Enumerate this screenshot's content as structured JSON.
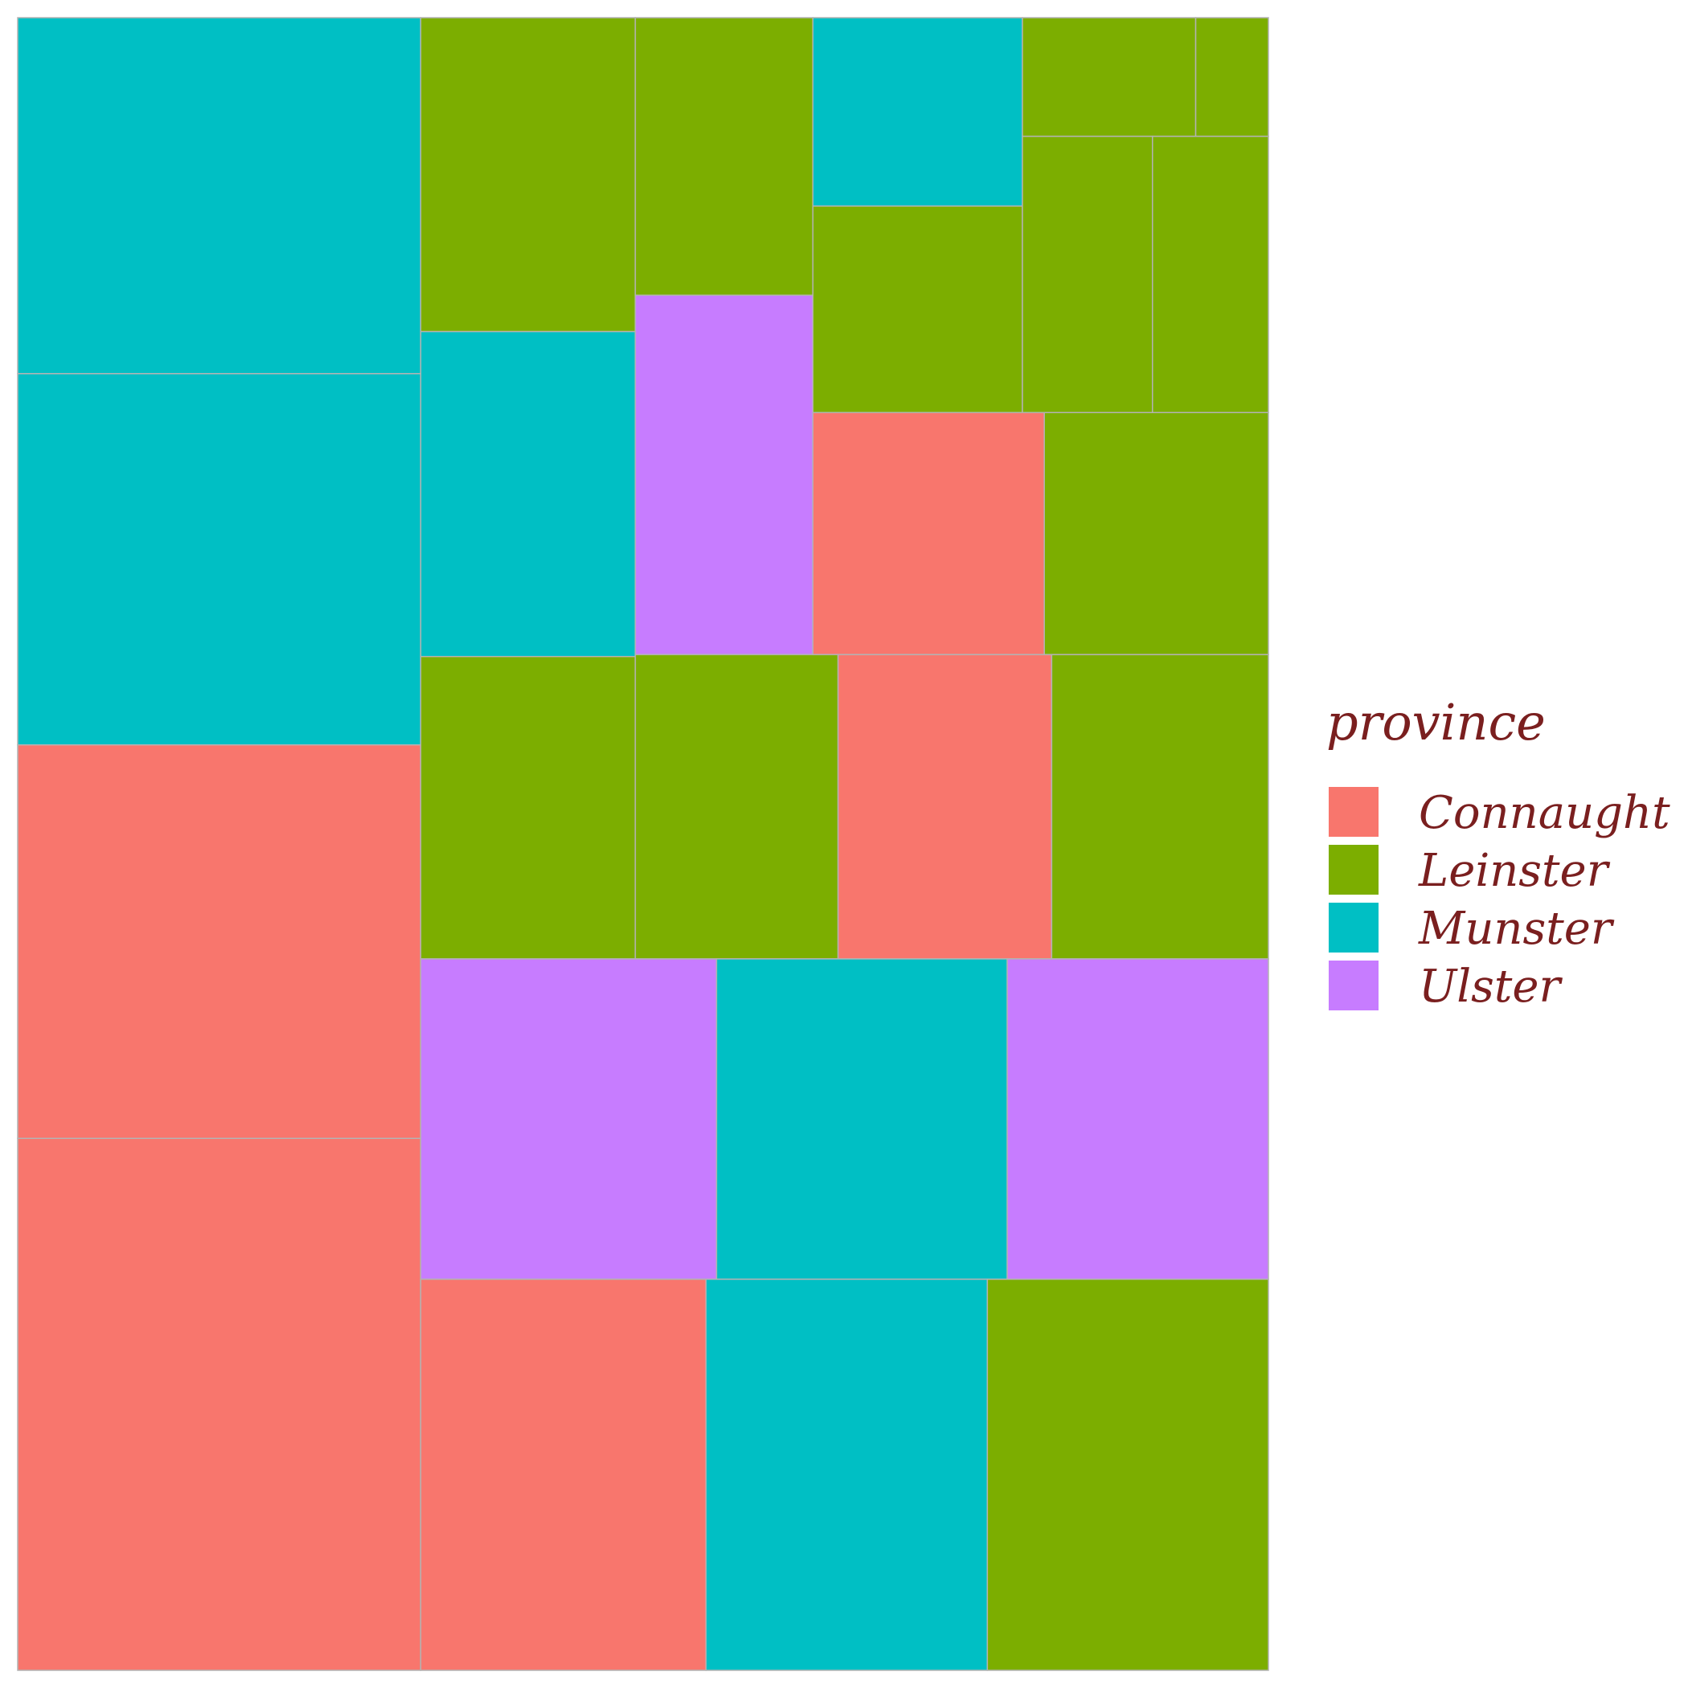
{
  "chart_data": {
    "type": "treemap",
    "legend": {
      "title": "province",
      "placement": "right",
      "entries": [
        {
          "label": "Connaught",
          "color": "#F8766D"
        },
        {
          "label": "Leinster",
          "color": "#7CAE00"
        },
        {
          "label": "Munster",
          "color": "#00BFC4"
        },
        {
          "label": "Ulster",
          "color": "#C77CFF"
        }
      ]
    },
    "tiles": [
      {
        "province": "Munster",
        "value": 1214
      },
      {
        "province": "Munster",
        "value": 1266
      },
      {
        "province": "Connaught",
        "value": 1342
      },
      {
        "province": "Connaught",
        "value": 1814
      },
      {
        "province": "Leinster",
        "value": 570
      },
      {
        "province": "Munster",
        "value": 590
      },
      {
        "province": "Leinster",
        "value": 417
      },
      {
        "province": "Leinster",
        "value": 522
      },
      {
        "province": "Ulster",
        "value": 540
      },
      {
        "province": "Leinster",
        "value": 549
      },
      {
        "province": "Munster",
        "value": 334
      },
      {
        "province": "Leinster",
        "value": 366
      },
      {
        "province": "Leinster",
        "value": 174
      },
      {
        "province": "Leinster",
        "value": 73
      },
      {
        "province": "Leinster",
        "value": 304
      },
      {
        "province": "Leinster",
        "value": 271
      },
      {
        "province": "Connaught",
        "value": 474
      },
      {
        "province": "Leinster",
        "value": 459
      },
      {
        "province": "Leinster",
        "value": 558
      },
      {
        "province": "Connaught",
        "value": 550
      },
      {
        "province": "Leinster",
        "value": 538
      },
      {
        "province": "Ulster",
        "value": 802
      },
      {
        "province": "Munster",
        "value": 788
      },
      {
        "province": "Ulster",
        "value": 708
      },
      {
        "province": "Connaught",
        "value": 944
      },
      {
        "province": "Munster",
        "value": 931
      },
      {
        "province": "Leinster",
        "value": 930
      }
    ]
  }
}
